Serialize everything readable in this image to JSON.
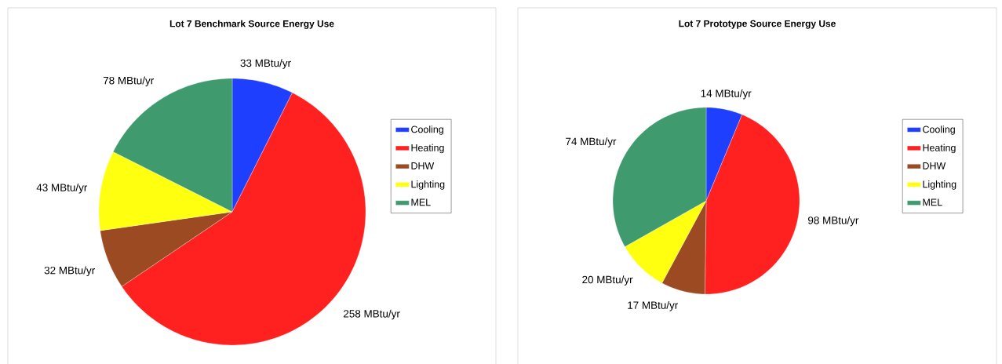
{
  "chart_data": [
    {
      "type": "pie",
      "title": "Lot 7 Benchmark Source Energy Use",
      "categories": [
        "Cooling",
        "Heating",
        "DHW",
        "Lighting",
        "MEL"
      ],
      "values": [
        33,
        258,
        32,
        43,
        78
      ],
      "colors": [
        "#1f3fff",
        "#ff2020",
        "#9c4a22",
        "#ffff10",
        "#3f9a6e"
      ],
      "value_labels": [
        "33 MBtu/yr",
        "258 MBtu/yr",
        "32 MBtu/yr",
        "43 MBtu/yr",
        "78 MBtu/yr"
      ],
      "legend": "right"
    },
    {
      "type": "pie",
      "title": "Lot 7 Prototype Source Energy Use",
      "categories": [
        "Cooling",
        "Heating",
        "DHW",
        "Lighting",
        "MEL"
      ],
      "values": [
        14,
        98,
        17,
        20,
        74
      ],
      "colors": [
        "#1f3fff",
        "#ff2020",
        "#9c4a22",
        "#ffff10",
        "#3f9a6e"
      ],
      "value_labels": [
        "14 MBtu/yr",
        "98 MBtu/yr",
        "17 MBtu/yr",
        "20 MBtu/yr",
        "74 MBtu/yr"
      ],
      "legend": "right"
    }
  ]
}
